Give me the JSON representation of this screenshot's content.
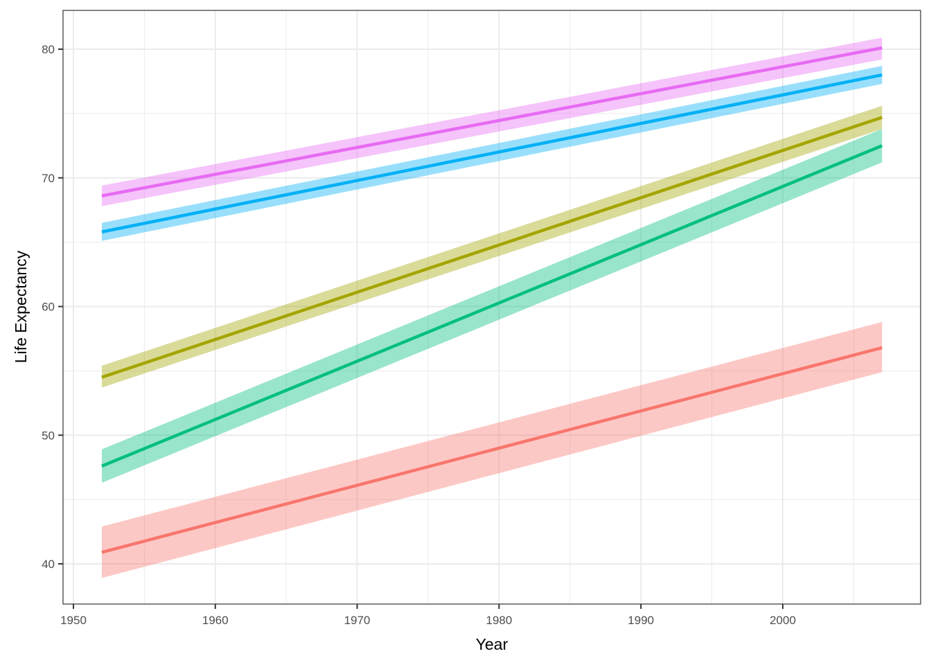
{
  "chart_data": {
    "type": "line",
    "title": "",
    "xlabel": "Year",
    "ylabel": "Life Expectancy",
    "xlim": [
      1949.3,
      2009.7
    ],
    "ylim": [
      37,
      83
    ],
    "x_ticks": [
      1950,
      1960,
      1970,
      1980,
      1990,
      2000
    ],
    "x_tick_labels": [
      "1950",
      "1960",
      "1970",
      "1980",
      "1990",
      "2000"
    ],
    "y_ticks": [
      40,
      50,
      60,
      70,
      80
    ],
    "y_tick_labels": [
      "40",
      "50",
      "60",
      "70",
      "80"
    ],
    "grid": true,
    "legend": "none",
    "x": [
      1952,
      2007
    ],
    "series": [
      {
        "name": "series-pink",
        "color": "#E76BF3",
        "values": [
          68.6,
          80.1
        ],
        "ci_lower": [
          67.8,
          79.2
        ],
        "ci_upper": [
          69.4,
          80.9
        ]
      },
      {
        "name": "series-blue",
        "color": "#00B0F6",
        "values": [
          65.8,
          78.0
        ],
        "ci_lower": [
          65.1,
          77.3
        ],
        "ci_upper": [
          66.5,
          78.7
        ]
      },
      {
        "name": "series-olive",
        "color": "#A3A500",
        "values": [
          54.5,
          74.7
        ],
        "ci_lower": [
          53.7,
          73.8
        ],
        "ci_upper": [
          55.4,
          75.6
        ]
      },
      {
        "name": "series-green",
        "color": "#00BF7D",
        "values": [
          47.6,
          72.5
        ],
        "ci_lower": [
          46.3,
          71.2
        ],
        "ci_upper": [
          48.9,
          73.8
        ]
      },
      {
        "name": "series-red",
        "color": "#F8766D",
        "values": [
          40.9,
          56.8
        ],
        "ci_lower": [
          38.9,
          54.9
        ],
        "ci_upper": [
          42.9,
          58.8
        ]
      }
    ]
  }
}
